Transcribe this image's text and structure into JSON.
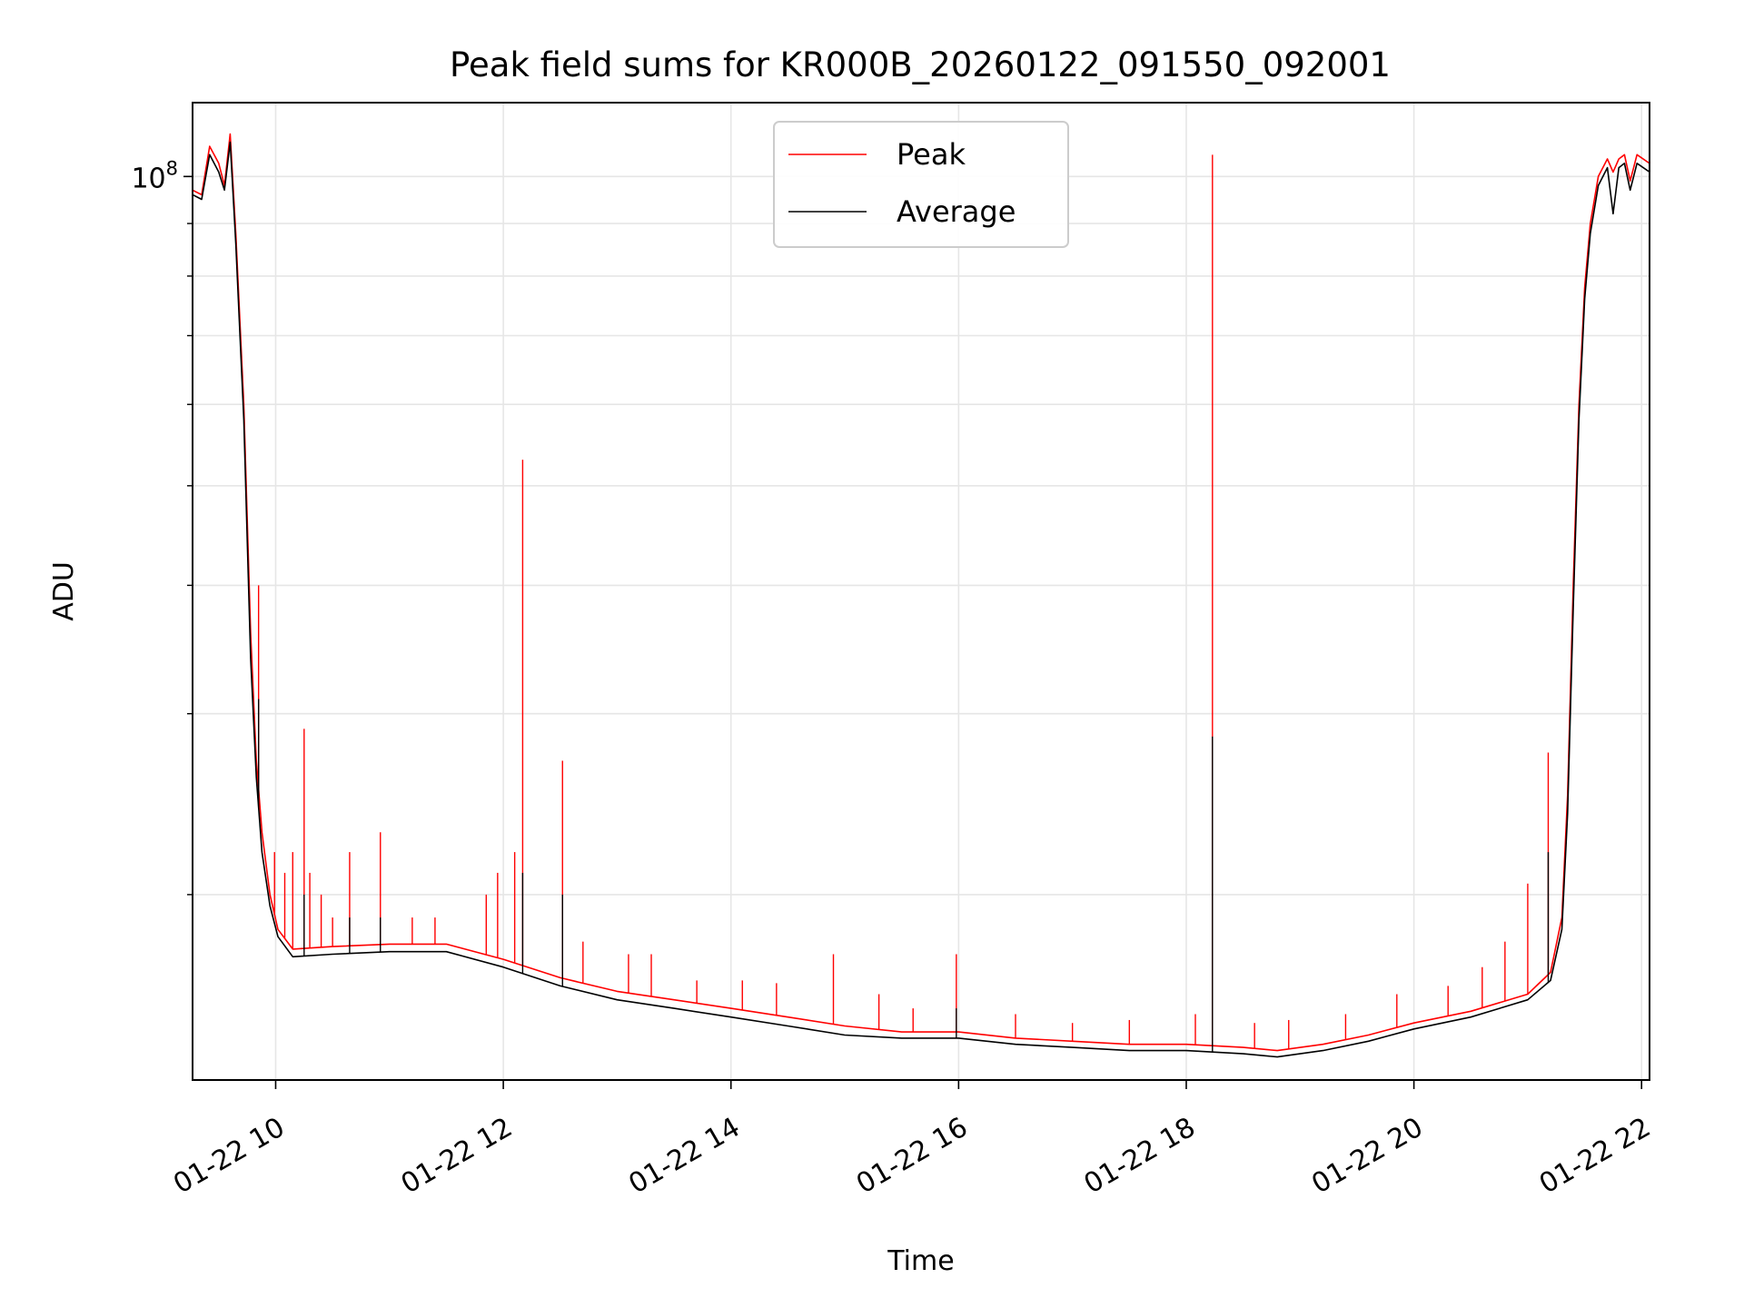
{
  "chart_data": {
    "type": "line",
    "title": "Peak field sums for KR000B_20260122_091550_092001",
    "xlabel": "Time",
    "ylabel": "ADU",
    "yscale": "log",
    "ylim": [
      13200000,
      118000000
    ],
    "xlim": [
      9.27,
      22.07
    ],
    "x_ticks": [
      {
        "value": 10,
        "label": "01-22 10"
      },
      {
        "value": 12,
        "label": "01-22 12"
      },
      {
        "value": 14,
        "label": "01-22 14"
      },
      {
        "value": 16,
        "label": "01-22 16"
      },
      {
        "value": 18,
        "label": "01-22 18"
      },
      {
        "value": 20,
        "label": "01-22 20"
      },
      {
        "value": 22,
        "label": "01-22 22"
      }
    ],
    "y_major_ticks": [
      {
        "value": 100000000,
        "base": "10",
        "exp": "8"
      }
    ],
    "y_minor_ticks": [
      20000000,
      30000000,
      40000000,
      50000000,
      60000000,
      70000000,
      80000000,
      90000000
    ],
    "grid": true,
    "legend": {
      "position": "top-center",
      "entries": [
        "Peak",
        "Average"
      ]
    },
    "series": [
      {
        "name": "Peak",
        "color": "#ff0000",
        "baseline": [
          [
            9.27,
            97000000
          ],
          [
            9.35,
            96000000
          ],
          [
            9.42,
            107000000
          ],
          [
            9.5,
            103000000
          ],
          [
            9.55,
            98000000
          ],
          [
            9.6,
            110000000
          ],
          [
            9.65,
            88000000
          ],
          [
            9.72,
            60000000
          ],
          [
            9.78,
            36000000
          ],
          [
            9.83,
            27000000
          ],
          [
            9.88,
            23000000
          ],
          [
            9.95,
            20000000
          ],
          [
            10.02,
            18500000
          ],
          [
            10.15,
            17700000
          ],
          [
            10.5,
            17800000
          ],
          [
            11,
            17900000
          ],
          [
            11.5,
            17900000
          ],
          [
            12,
            17300000
          ],
          [
            12.5,
            16600000
          ],
          [
            13,
            16100000
          ],
          [
            13.5,
            15800000
          ],
          [
            14,
            15500000
          ],
          [
            14.5,
            15200000
          ],
          [
            15,
            14900000
          ],
          [
            15.5,
            14700000
          ],
          [
            16,
            14700000
          ],
          [
            16.5,
            14500000
          ],
          [
            17,
            14400000
          ],
          [
            17.5,
            14300000
          ],
          [
            18,
            14300000
          ],
          [
            18.5,
            14200000
          ],
          [
            18.8,
            14100000
          ],
          [
            19.2,
            14300000
          ],
          [
            19.6,
            14600000
          ],
          [
            20,
            15000000
          ],
          [
            20.5,
            15400000
          ],
          [
            21,
            16000000
          ],
          [
            21.2,
            16800000
          ],
          [
            21.3,
            19000000
          ],
          [
            21.35,
            25000000
          ],
          [
            21.4,
            40000000
          ],
          [
            21.45,
            60000000
          ],
          [
            21.5,
            78000000
          ],
          [
            21.55,
            90000000
          ],
          [
            21.62,
            100000000
          ],
          [
            21.7,
            104000000
          ],
          [
            21.75,
            101000000
          ],
          [
            21.8,
            104000000
          ],
          [
            21.85,
            105000000
          ],
          [
            21.9,
            99000000
          ],
          [
            21.96,
            105000000
          ],
          [
            22.07,
            103000000
          ]
        ],
        "spikes": [
          [
            9.85,
            40000000
          ],
          [
            9.99,
            22000000
          ],
          [
            10.08,
            21000000
          ],
          [
            10.15,
            22000000
          ],
          [
            10.25,
            29000000
          ],
          [
            10.3,
            21000000
          ],
          [
            10.4,
            20000000
          ],
          [
            10.5,
            19000000
          ],
          [
            10.65,
            22000000
          ],
          [
            10.92,
            23000000
          ],
          [
            11.2,
            19000000
          ],
          [
            11.4,
            19000000
          ],
          [
            11.85,
            20000000
          ],
          [
            11.95,
            21000000
          ],
          [
            12.1,
            22000000
          ],
          [
            12.17,
            53000000
          ],
          [
            12.52,
            27000000
          ],
          [
            12.7,
            18000000
          ],
          [
            13.1,
            17500000
          ],
          [
            13.3,
            17500000
          ],
          [
            13.7,
            16500000
          ],
          [
            14.1,
            16500000
          ],
          [
            14.4,
            16400000
          ],
          [
            14.9,
            17500000
          ],
          [
            15.3,
            16000000
          ],
          [
            15.6,
            15500000
          ],
          [
            15.98,
            17500000
          ],
          [
            16.5,
            15300000
          ],
          [
            17,
            15000000
          ],
          [
            17.5,
            15100000
          ],
          [
            18.08,
            15300000
          ],
          [
            18.23,
            105000000
          ],
          [
            18.6,
            15000000
          ],
          [
            18.9,
            15100000
          ],
          [
            19.4,
            15300000
          ],
          [
            19.85,
            16000000
          ],
          [
            20.3,
            16300000
          ],
          [
            20.6,
            17000000
          ],
          [
            20.8,
            18000000
          ],
          [
            21,
            20500000
          ],
          [
            21.18,
            27500000
          ]
        ]
      },
      {
        "name": "Average",
        "color": "#000000",
        "baseline": [
          [
            9.27,
            96000000
          ],
          [
            9.35,
            95000000
          ],
          [
            9.42,
            105000000
          ],
          [
            9.5,
            101000000
          ],
          [
            9.55,
            97000000
          ],
          [
            9.6,
            108000000
          ],
          [
            9.65,
            86000000
          ],
          [
            9.72,
            58000000
          ],
          [
            9.78,
            34000000
          ],
          [
            9.83,
            26000000
          ],
          [
            9.88,
            22000000
          ],
          [
            9.95,
            19500000
          ],
          [
            10.02,
            18200000
          ],
          [
            10.15,
            17400000
          ],
          [
            10.5,
            17500000
          ],
          [
            11,
            17600000
          ],
          [
            11.5,
            17600000
          ],
          [
            12,
            17000000
          ],
          [
            12.5,
            16300000
          ],
          [
            13,
            15800000
          ],
          [
            13.5,
            15500000
          ],
          [
            14,
            15200000
          ],
          [
            14.5,
            14900000
          ],
          [
            15,
            14600000
          ],
          [
            15.5,
            14500000
          ],
          [
            16,
            14500000
          ],
          [
            16.5,
            14300000
          ],
          [
            17,
            14200000
          ],
          [
            17.5,
            14100000
          ],
          [
            18,
            14100000
          ],
          [
            18.5,
            14000000
          ],
          [
            18.8,
            13900000
          ],
          [
            19.2,
            14100000
          ],
          [
            19.6,
            14400000
          ],
          [
            20,
            14800000
          ],
          [
            20.5,
            15200000
          ],
          [
            21,
            15800000
          ],
          [
            21.2,
            16500000
          ],
          [
            21.3,
            18500000
          ],
          [
            21.35,
            24000000
          ],
          [
            21.4,
            38000000
          ],
          [
            21.45,
            58000000
          ],
          [
            21.5,
            76000000
          ],
          [
            21.55,
            88000000
          ],
          [
            21.62,
            98000000
          ],
          [
            21.7,
            102000000
          ],
          [
            21.75,
            92000000
          ],
          [
            21.8,
            102000000
          ],
          [
            21.85,
            103000000
          ],
          [
            21.9,
            97000000
          ],
          [
            21.96,
            103000000
          ],
          [
            22.07,
            101000000
          ]
        ],
        "spikes": [
          [
            9.85,
            31000000
          ],
          [
            10.25,
            20000000
          ],
          [
            10.65,
            19000000
          ],
          [
            10.92,
            19000000
          ],
          [
            12.17,
            21000000
          ],
          [
            12.52,
            20000000
          ],
          [
            15.98,
            15500000
          ],
          [
            18.23,
            28500000
          ],
          [
            21.18,
            22000000
          ]
        ]
      }
    ]
  }
}
